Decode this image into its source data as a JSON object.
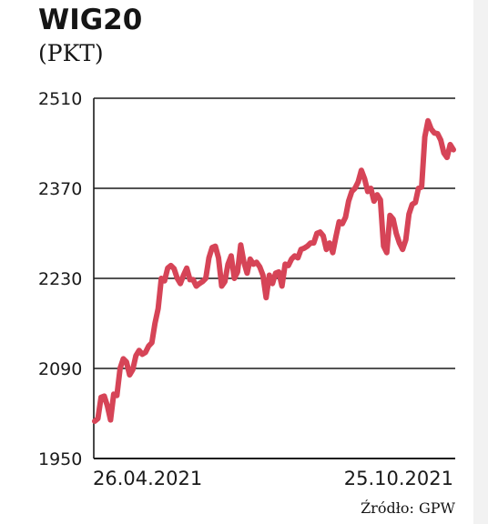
{
  "chart_data": {
    "type": "line",
    "title": "WIG20",
    "subtitle": "(PKT)",
    "source": "Źródło: GPW",
    "ylim": [
      1950,
      2510
    ],
    "yticks": [
      1950,
      2090,
      2230,
      2370,
      2510
    ],
    "ytick_labels": [
      "1950",
      "2090",
      "2230",
      "2370",
      "2510"
    ],
    "xtick_labels": [
      "26.04.2021",
      "25.10.2021"
    ],
    "grid": true,
    "line_color": "#d64457",
    "series": [
      {
        "values": [
          2008,
          2012,
          2045,
          2047,
          2032,
          2010,
          2050,
          2048,
          2090,
          2105,
          2100,
          2080,
          2088,
          2110,
          2118,
          2112,
          2115,
          2125,
          2130,
          2160,
          2183,
          2230,
          2226,
          2246,
          2250,
          2245,
          2230,
          2222,
          2235,
          2246,
          2228,
          2228,
          2218,
          2222,
          2225,
          2230,
          2262,
          2278,
          2280,
          2262,
          2218,
          2225,
          2252,
          2265,
          2230,
          2240,
          2282,
          2255,
          2238,
          2260,
          2252,
          2255,
          2248,
          2235,
          2200,
          2235,
          2222,
          2238,
          2240,
          2218,
          2252,
          2250,
          2260,
          2265,
          2262,
          2275,
          2277,
          2280,
          2285,
          2285,
          2300,
          2302,
          2296,
          2275,
          2285,
          2270,
          2295,
          2318,
          2315,
          2325,
          2350,
          2365,
          2370,
          2380,
          2398,
          2385,
          2365,
          2370,
          2350,
          2360,
          2352,
          2280,
          2270,
          2328,
          2322,
          2300,
          2285,
          2275,
          2290,
          2330,
          2345,
          2348,
          2370,
          2372,
          2450,
          2475,
          2462,
          2456,
          2455,
          2445,
          2425,
          2418,
          2438,
          2430
        ]
      }
    ]
  }
}
